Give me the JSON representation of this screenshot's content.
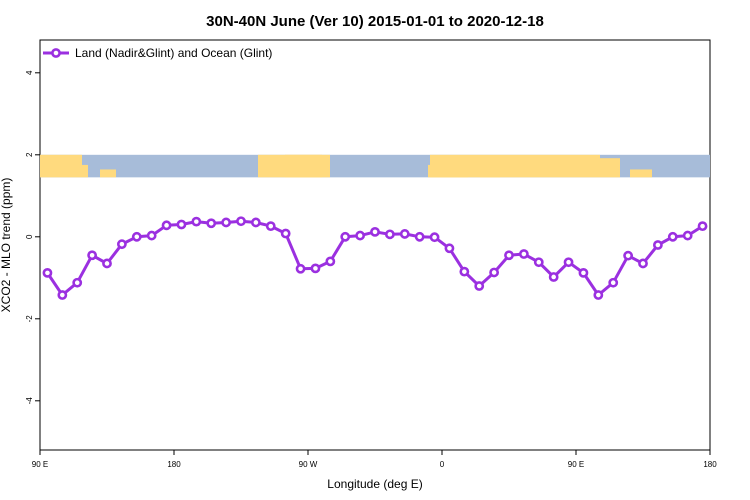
{
  "chart_data": {
    "type": "line",
    "title": "30N-40N June (Ver 10)   2015-01-01 to 2020-12-18",
    "xlabel": "Longitude (deg E)",
    "ylabel": "XCO2 - MLO trend (ppm)",
    "xlim": [
      90,
      450
    ],
    "ylim": [
      -5.2,
      4.8
    ],
    "x_ticks": [
      {
        "value": 90,
        "label": "90 E"
      },
      {
        "value": 162,
        "label": "180"
      },
      {
        "value": 234,
        "label": "90 W"
      },
      {
        "value": 306,
        "label": "0"
      },
      {
        "value": 378,
        "label": "90 E"
      },
      {
        "value": 450,
        "label": "180"
      }
    ],
    "y_ticks": [
      {
        "value": -4,
        "label": "-4"
      },
      {
        "value": -2,
        "label": "-2"
      },
      {
        "value": 0,
        "label": "0"
      },
      {
        "value": 2,
        "label": "2"
      },
      {
        "value": 4,
        "label": "4"
      }
    ],
    "legend_position": "top-left",
    "grid": false,
    "series": [
      {
        "name": "Land (Nadir&Glint) and Ocean (Glint)",
        "color": "#9b30e0",
        "x": [
          94,
          102,
          110,
          118,
          126,
          134,
          142,
          150,
          158,
          166,
          174,
          182,
          190,
          198,
          206,
          214,
          222,
          230,
          238,
          246,
          254,
          262,
          270,
          278,
          286,
          294,
          302,
          310,
          318,
          326,
          334,
          342,
          350,
          358,
          366,
          374,
          382,
          390,
          398,
          406,
          414,
          422,
          430,
          438,
          446
        ],
        "values": [
          -0.88,
          -1.42,
          -1.12,
          -0.45,
          -0.65,
          -0.18,
          0.0,
          0.03,
          0.28,
          0.3,
          0.37,
          0.33,
          0.35,
          0.38,
          0.35,
          0.26,
          0.08,
          -0.78,
          -0.77,
          -0.6,
          0.0,
          0.03,
          0.12,
          0.06,
          0.07,
          0.0,
          -0.01,
          -0.28,
          -0.85,
          -1.2,
          -0.87,
          -0.45,
          -0.42,
          -0.62,
          -0.98,
          -0.62,
          -0.88,
          -1.42,
          -1.12,
          -0.46,
          -0.65,
          -0.2,
          0.0,
          0.03,
          0.26
        ]
      }
    ],
    "map_strip": {
      "ocean_color": "#a7bcd9",
      "land_color": "#ffda7e",
      "ymin": 1.45,
      "ymax": 2.0
    }
  }
}
